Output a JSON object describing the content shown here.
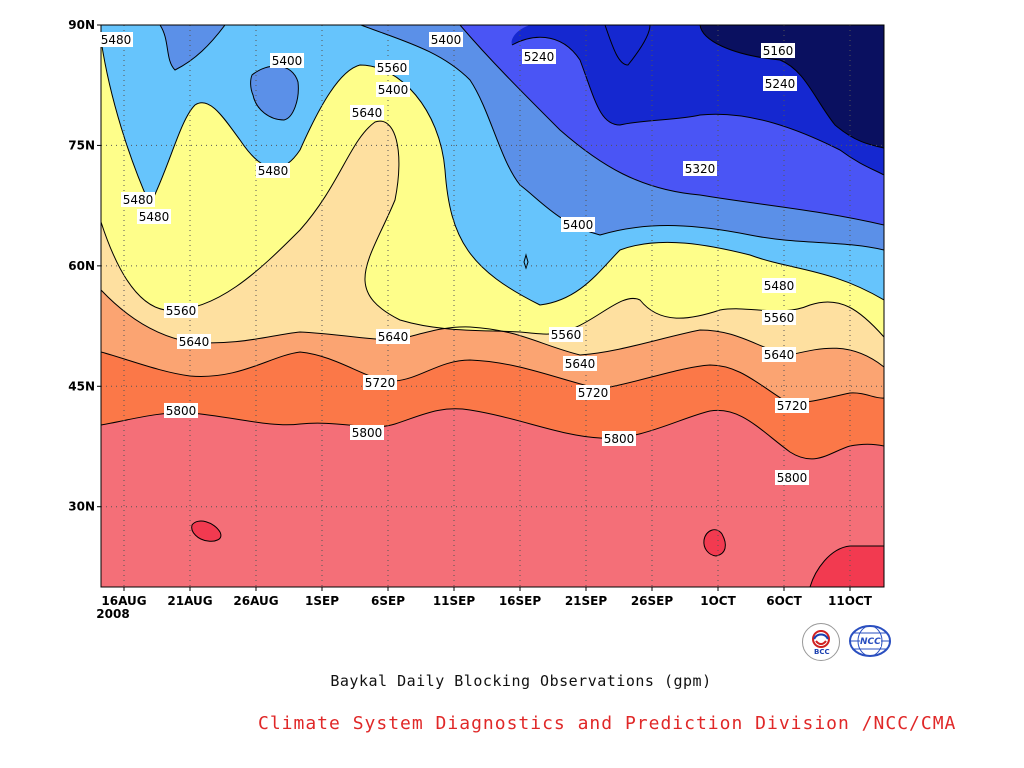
{
  "chart_data": {
    "type": "contour",
    "title": "Baykal Daily Blocking Observations (gpm)",
    "x_labels": [
      "16AUG",
      "21AUG",
      "26AUG",
      "1SEP",
      "6SEP",
      "11SEP",
      "16SEP",
      "21SEP",
      "26SEP",
      "1OCT",
      "6OCT",
      "11OCT"
    ],
    "x_label_second_line": "2008",
    "y_labels": [
      "90N",
      "75N",
      "60N",
      "45N",
      "30N"
    ],
    "ylim": [
      20,
      90
    ],
    "grid": "dotted",
    "contour_levels": [
      5160,
      5240,
      5320,
      5400,
      5480,
      5560,
      5640,
      5720,
      5800,
      5880
    ],
    "contour_labels": [
      "5480",
      "5400",
      "5400",
      "5240",
      "5160",
      "5480",
      "5560",
      "5240",
      "5640",
      "5480",
      "5320",
      "5480",
      "5400",
      "5400",
      "5480",
      "5560",
      "5560",
      "5560",
      "5640",
      "5640",
      "5640",
      "5640",
      "5720",
      "5720",
      "5720",
      "5800",
      "5800",
      "5800",
      "5800"
    ],
    "fill_colors": {
      "below_5160": "#0a1060",
      "5160_5240": "#1528d0",
      "5240_5320": "#4a55f5",
      "5320_5400": "#5b90e8",
      "5400_5480": "#66c4fc",
      "5480_5560": "#fefe8a",
      "5560_5640": "#fee0a0",
      "5640_5720": "#fba472",
      "5720_5800": "#fb7848",
      "5800_5880": "#f46f78",
      "above_5880": "#f23a50"
    }
  },
  "footer": "Climate System Diagnostics and Prediction Division /NCC/CMA",
  "footer_color": "#e02828",
  "logos": {
    "left": "BCC",
    "right": "NCC"
  }
}
